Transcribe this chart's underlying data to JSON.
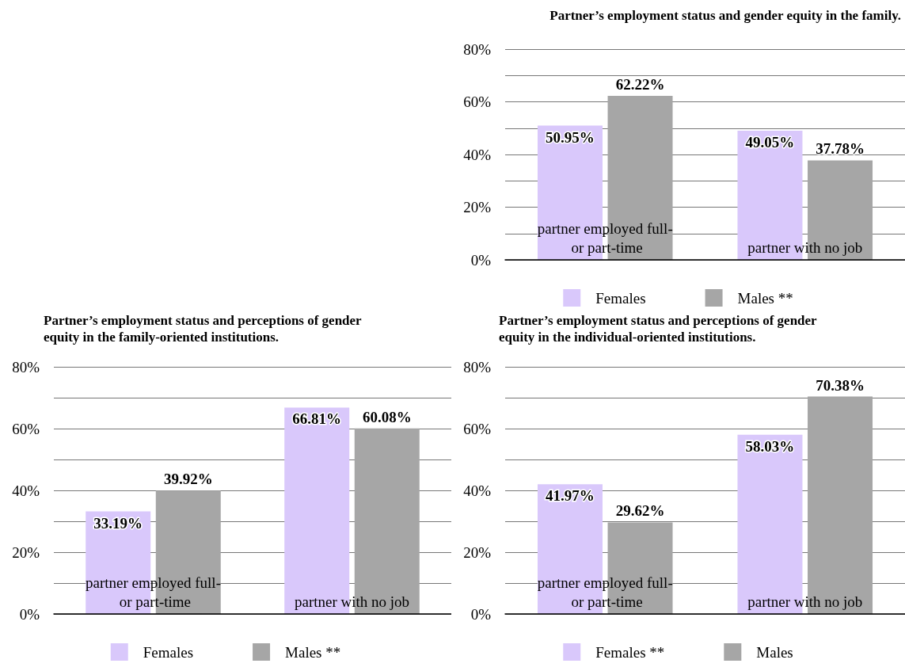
{
  "chart_data": [
    {
      "type": "bar",
      "title": "Partner’s employment status and gender equity in the family.",
      "categories": [
        "partner employed full- or part-time",
        "partner with no job"
      ],
      "series": [
        {
          "name": "Females",
          "color": "#d9c8fb",
          "values": [
            50.95,
            49.05
          ],
          "value_labels": [
            "50.95%",
            "49.05%"
          ]
        },
        {
          "name": "Males **",
          "color": "#a6a6a6",
          "values": [
            62.22,
            37.78
          ],
          "value_labels": [
            "62.22%",
            "37.78%"
          ]
        }
      ],
      "ylim": [
        0,
        80
      ],
      "yticks": [
        {
          "value": 0,
          "label": "0%"
        },
        {
          "value": 10,
          "label": null
        },
        {
          "value": 20,
          "label": "20%"
        },
        {
          "value": 30,
          "label": null
        },
        {
          "value": 40,
          "label": "40%"
        },
        {
          "value": 50,
          "label": null
        },
        {
          "value": 60,
          "label": "60%"
        },
        {
          "value": 70,
          "label": null
        },
        {
          "value": 80,
          "label": "80%"
        }
      ],
      "grid": "y",
      "legend": "bottom"
    },
    {
      "type": "bar",
      "title": "Partner’s employment status and perceptions of gender equity in the family-oriented institutions.",
      "categories": [
        "partner employed full- or part-time",
        "partner with no job"
      ],
      "series": [
        {
          "name": "Females",
          "color": "#d9c8fb",
          "values": [
            33.19,
            66.81
          ],
          "value_labels": [
            "33.19%",
            "66.81%"
          ]
        },
        {
          "name": "Males **",
          "color": "#a6a6a6",
          "values": [
            39.92,
            60.08
          ],
          "value_labels": [
            "39.92%",
            "60.08%"
          ]
        }
      ],
      "ylim": [
        0,
        80
      ],
      "yticks": [
        {
          "value": 0,
          "label": "0%"
        },
        {
          "value": 10,
          "label": null
        },
        {
          "value": 20,
          "label": "20%"
        },
        {
          "value": 30,
          "label": null
        },
        {
          "value": 40,
          "label": "40%"
        },
        {
          "value": 50,
          "label": null
        },
        {
          "value": 60,
          "label": "60%"
        },
        {
          "value": 70,
          "label": null
        },
        {
          "value": 80,
          "label": "80%"
        }
      ],
      "grid": "y",
      "legend": "bottom"
    },
    {
      "type": "bar",
      "title": "Partner’s employment status and perceptions of gender equity in the individual-oriented institutions.",
      "categories": [
        "partner employed full- or part-time",
        "partner with no job"
      ],
      "series": [
        {
          "name": "Females **",
          "color": "#d9c8fb",
          "values": [
            41.97,
            58.03
          ],
          "value_labels": [
            "41.97%",
            "58.03%"
          ]
        },
        {
          "name": "Males",
          "color": "#a6a6a6",
          "values": [
            29.62,
            70.38
          ],
          "value_labels": [
            "29.62%",
            "70.38%"
          ]
        }
      ],
      "ylim": [
        0,
        80
      ],
      "yticks": [
        {
          "value": 0,
          "label": "0%"
        },
        {
          "value": 10,
          "label": null
        },
        {
          "value": 20,
          "label": "20%"
        },
        {
          "value": 30,
          "label": null
        },
        {
          "value": 40,
          "label": "40%"
        },
        {
          "value": 50,
          "label": null
        },
        {
          "value": 60,
          "label": "60%"
        },
        {
          "value": 70,
          "label": null
        },
        {
          "value": 80,
          "label": "80%"
        }
      ],
      "grid": "y",
      "legend": "bottom"
    }
  ]
}
